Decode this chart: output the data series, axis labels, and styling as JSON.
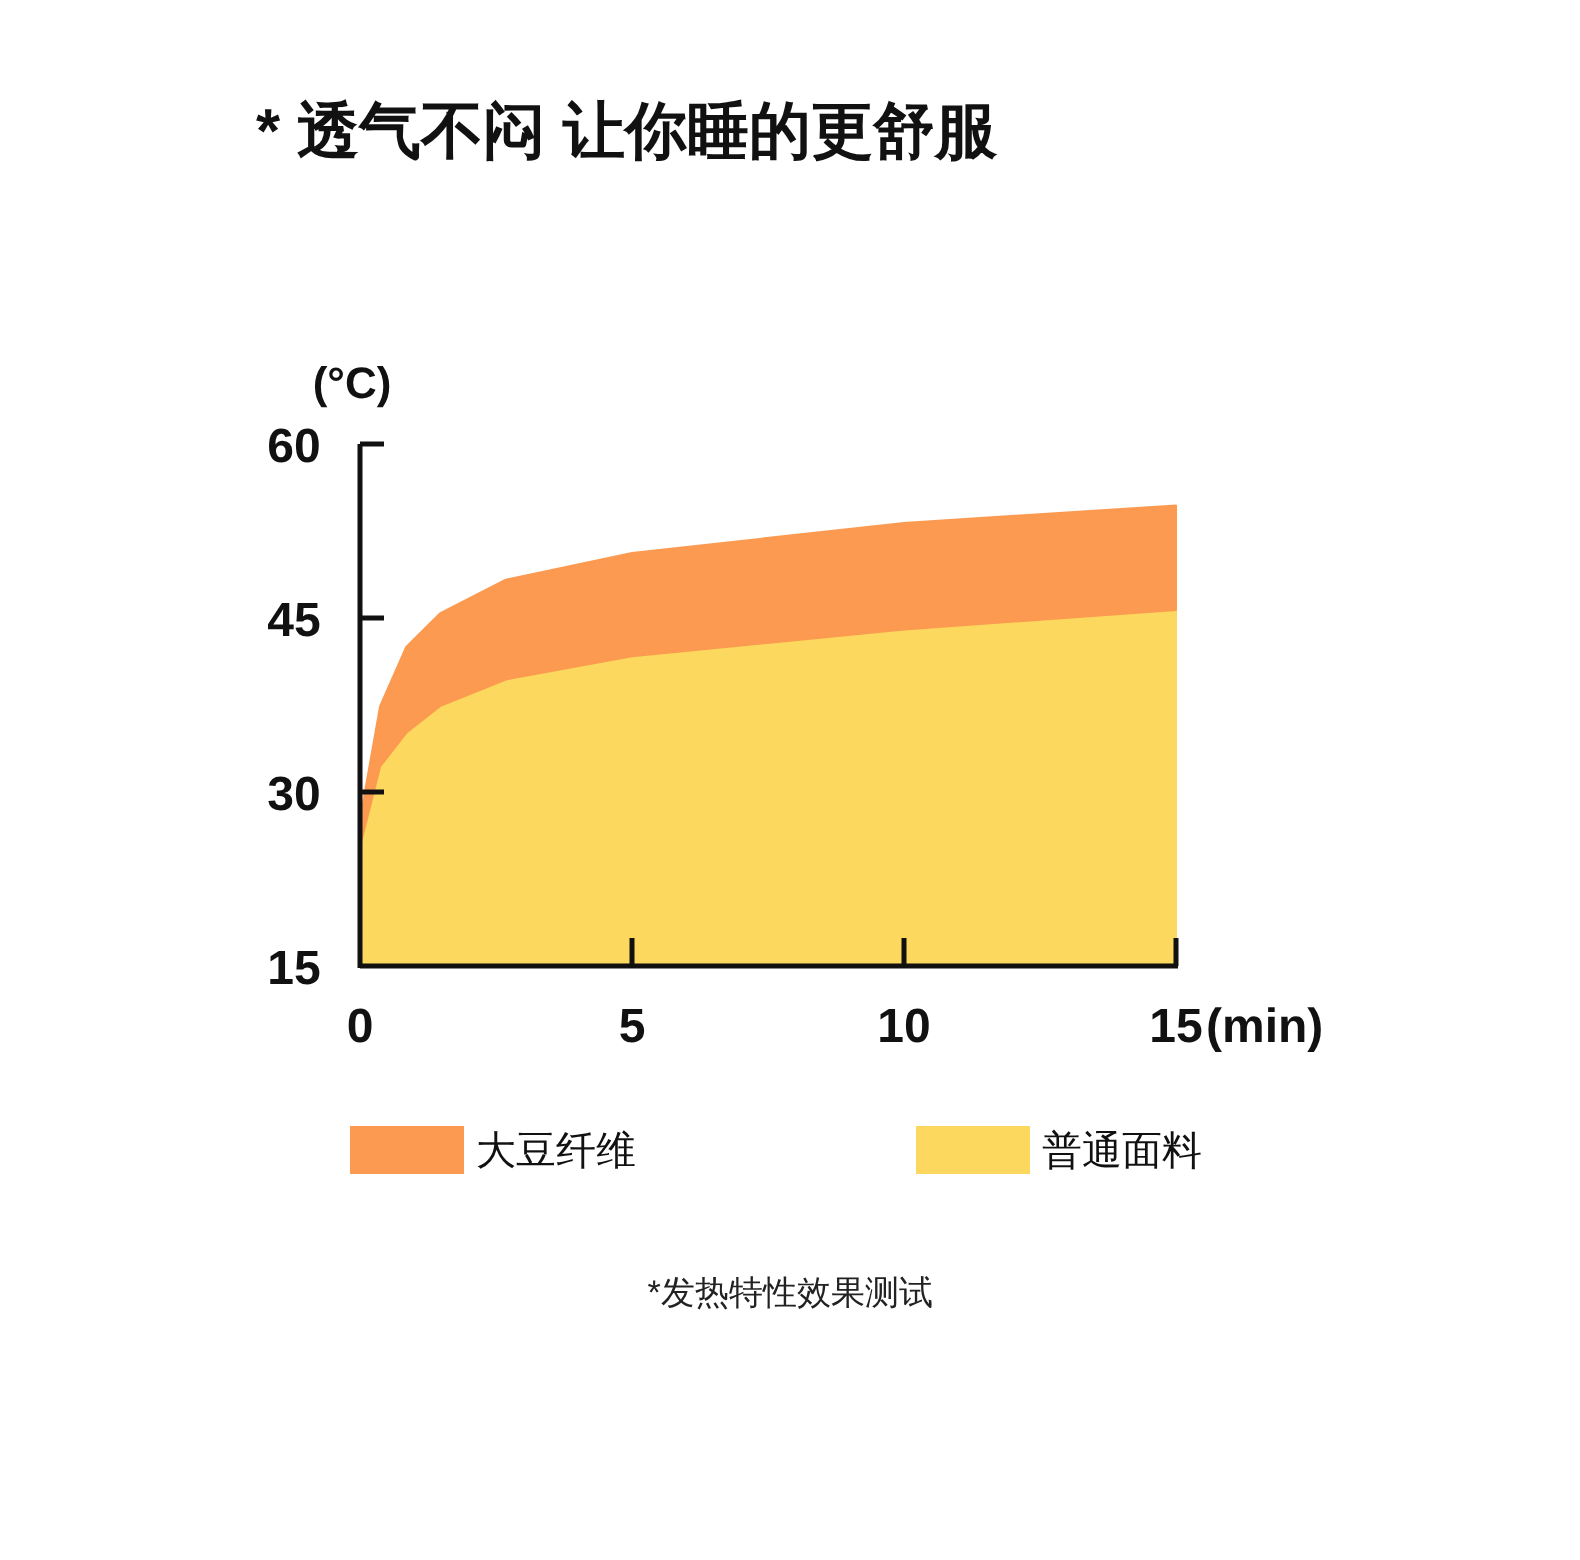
{
  "chart_data": {
    "type": "area",
    "title": "* 透气不闷 让你睡的更舒服",
    "ylabel": "(°C)",
    "xlabel": "(min)",
    "xlim": [
      0,
      15
    ],
    "ylim": [
      15,
      60
    ],
    "xticks": [
      0,
      5,
      10,
      15
    ],
    "yticks": [
      15,
      30,
      45,
      60
    ],
    "legend": "bottom",
    "grid": false,
    "annotations": [
      "*发热特性效果测试"
    ],
    "series": [
      {
        "name": "大豆纤维",
        "color": "#fb9a50",
        "x": [
          0,
          0.37,
          0.85,
          1.47,
          2.68,
          5,
          10,
          15
        ],
        "values": [
          27.6,
          37.4,
          42.5,
          45.4,
          48.3,
          50.6,
          53.2,
          54.7
        ]
      },
      {
        "name": "普通面料",
        "color": "#fdd85e",
        "x": [
          0,
          0.37,
          0.85,
          1.47,
          2.68,
          5,
          10,
          15
        ],
        "values": [
          25.3,
          32.2,
          35.1,
          37.4,
          39.7,
          41.7,
          44.0,
          45.7
        ]
      }
    ]
  }
}
